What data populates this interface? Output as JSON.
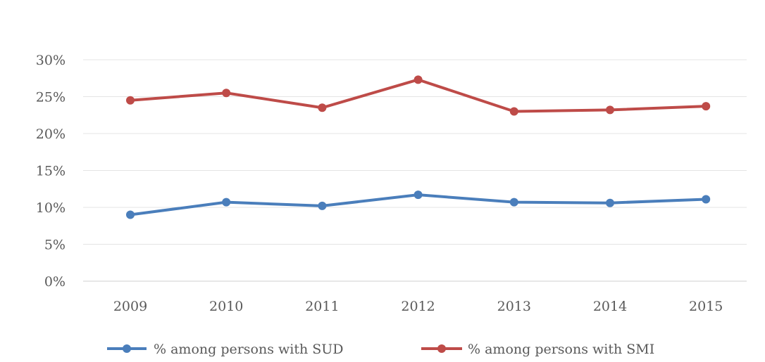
{
  "chart_data": {
    "type": "line",
    "title": "",
    "xlabel": "",
    "ylabel": "",
    "categories": [
      "2009",
      "2010",
      "2011",
      "2012",
      "2013",
      "2014",
      "2015"
    ],
    "y_ticks": [
      "0%",
      "5%",
      "10%",
      "15%",
      "20%",
      "25%",
      "30%"
    ],
    "ylim": [
      0,
      30
    ],
    "grid": true,
    "legend_position": "bottom",
    "series": [
      {
        "name": "% among persons with SUD",
        "color": "#4a7ebb",
        "values": [
          9.0,
          10.7,
          10.2,
          11.7,
          10.7,
          10.6,
          11.1
        ]
      },
      {
        "name": "% among persons with SMI",
        "color": "#be4b48",
        "values": [
          24.5,
          25.5,
          23.5,
          27.3,
          23.0,
          23.2,
          23.7
        ]
      }
    ]
  }
}
